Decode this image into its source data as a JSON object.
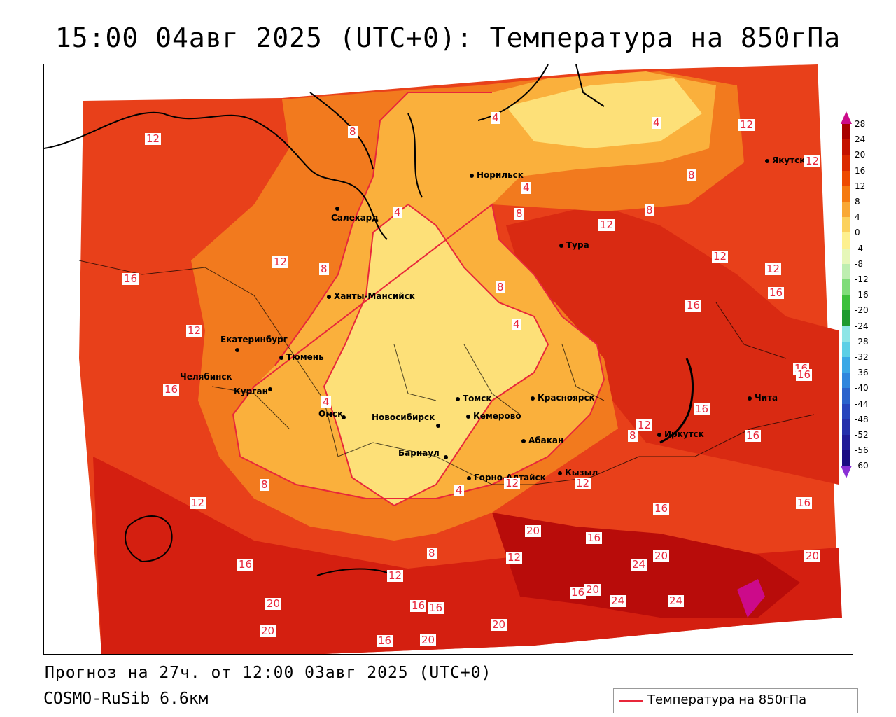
{
  "title": "15:00 04авг 2025 (UTC+0): Температура на 850гПа",
  "footer": {
    "forecast": "Прогноз на 27ч. от 12:00 03авг 2025 (UTC+0)",
    "model": "COSMO-RuSib 6.6км"
  },
  "legend": {
    "label": "Температура на 850гПа",
    "line_color": "#e8273a"
  },
  "scale": {
    "ticks": [
      "28",
      "24",
      "20",
      "16",
      "12",
      "8",
      "4",
      "0",
      "-4",
      "-8",
      "-12",
      "-16",
      "-20",
      "-24",
      "-28",
      "-32",
      "-36",
      "-40",
      "-44",
      "-48",
      "-52",
      "-56",
      "-60"
    ],
    "colors": [
      "#c0007a",
      "#a80000",
      "#c41200",
      "#db2a00",
      "#ee4a00",
      "#f57a10",
      "#f9a835",
      "#fbd15e",
      "#fdf08f",
      "#e6f7b9",
      "#bdeeb0",
      "#7fdc7a",
      "#3cc03c",
      "#1e9a2f",
      "#8de5e6",
      "#5ccfe6",
      "#3aa8e6",
      "#2f86dd",
      "#2a63cc",
      "#2745bd",
      "#2530ab",
      "#211c98",
      "#1a0b82",
      "#8a2fd6"
    ]
  },
  "cities": [
    {
      "name": "Норильск",
      "icon": "city-dot-icon"
    },
    {
      "name": "Якутск",
      "icon": "city-dot-icon"
    },
    {
      "name": "Салехард",
      "icon": "city-dot-icon"
    },
    {
      "name": "Тура",
      "icon": "city-dot-icon"
    },
    {
      "name": "Ханты-Мансийск",
      "icon": "city-dot-icon"
    },
    {
      "name": "Екатеринбург",
      "icon": "city-dot-icon"
    },
    {
      "name": "Тюмень",
      "icon": "city-dot-icon"
    },
    {
      "name": "Челябинск",
      "icon": "city-dot-icon"
    },
    {
      "name": "Курган",
      "icon": "city-dot-icon"
    },
    {
      "name": "Омск",
      "icon": "city-dot-icon"
    },
    {
      "name": "Новосибирск",
      "icon": "city-dot-icon"
    },
    {
      "name": "Томск",
      "icon": "city-dot-icon"
    },
    {
      "name": "Кемерово",
      "icon": "city-dot-icon"
    },
    {
      "name": "Красноярск",
      "icon": "city-dot-icon"
    },
    {
      "name": "Барнаул",
      "icon": "city-dot-icon"
    },
    {
      "name": "Абакан",
      "icon": "city-dot-icon"
    },
    {
      "name": "Горно-Алтайск",
      "icon": "city-dot-icon"
    },
    {
      "name": "Кызыл",
      "icon": "city-dot-icon"
    },
    {
      "name": "Иркутск",
      "icon": "city-dot-icon"
    },
    {
      "name": "Чита",
      "icon": "city-dot-icon"
    }
  ],
  "contour_labels": [
    "12",
    "8",
    "4",
    "4",
    "8",
    "12",
    "4",
    "8",
    "4",
    "8",
    "12",
    "12",
    "12",
    "16",
    "8",
    "12",
    "16",
    "16",
    "16",
    "16",
    "16",
    "16",
    "4",
    "8",
    "12",
    "4",
    "12",
    "8",
    "8",
    "16",
    "16",
    "12",
    "20",
    "16",
    "16",
    "12",
    "20",
    "8",
    "12",
    "16",
    "24",
    "20",
    "20",
    "24",
    "24",
    "16",
    "20",
    "16",
    "20",
    "20",
    "16",
    "20",
    "12",
    "16",
    "12",
    "4",
    "12"
  ]
}
